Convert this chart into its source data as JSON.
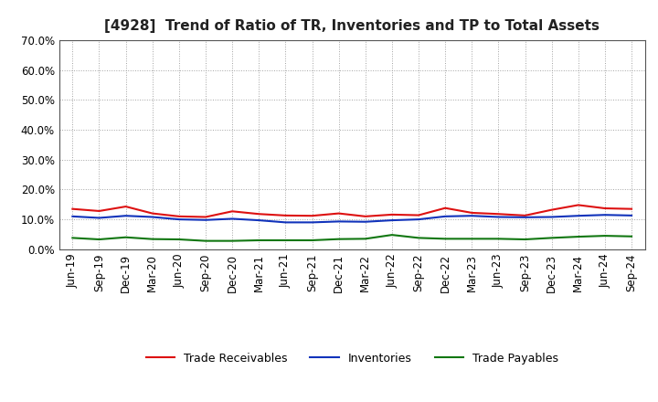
{
  "title": "[4928]  Trend of Ratio of TR, Inventories and TP to Total Assets",
  "x_labels": [
    "Jun-19",
    "Sep-19",
    "Dec-19",
    "Mar-20",
    "Jun-20",
    "Sep-20",
    "Dec-20",
    "Mar-21",
    "Jun-21",
    "Sep-21",
    "Dec-21",
    "Mar-22",
    "Jun-22",
    "Sep-22",
    "Dec-22",
    "Mar-23",
    "Jun-23",
    "Sep-23",
    "Dec-23",
    "Mar-24",
    "Jun-24",
    "Sep-24"
  ],
  "trade_receivables": [
    0.135,
    0.128,
    0.143,
    0.12,
    0.11,
    0.108,
    0.127,
    0.118,
    0.113,
    0.112,
    0.12,
    0.11,
    0.116,
    0.114,
    0.138,
    0.122,
    0.118,
    0.113,
    0.132,
    0.148,
    0.137,
    0.135
  ],
  "inventories": [
    0.11,
    0.105,
    0.112,
    0.108,
    0.1,
    0.098,
    0.102,
    0.097,
    0.09,
    0.09,
    0.093,
    0.092,
    0.097,
    0.1,
    0.11,
    0.112,
    0.108,
    0.107,
    0.108,
    0.112,
    0.115,
    0.113
  ],
  "trade_payables": [
    0.038,
    0.033,
    0.04,
    0.034,
    0.033,
    0.028,
    0.028,
    0.03,
    0.03,
    0.03,
    0.034,
    0.035,
    0.048,
    0.038,
    0.035,
    0.035,
    0.035,
    0.033,
    0.038,
    0.042,
    0.045,
    0.043
  ],
  "ylim": [
    0.0,
    0.7
  ],
  "yticks": [
    0.0,
    0.1,
    0.2,
    0.3,
    0.4,
    0.5,
    0.6,
    0.7
  ],
  "tr_color": "#dd1111",
  "inv_color": "#1133bb",
  "tp_color": "#117711",
  "bg_color": "#ffffff",
  "plot_bg_color": "#ffffff",
  "grid_color": "#999999",
  "legend_labels": [
    "Trade Receivables",
    "Inventories",
    "Trade Payables"
  ],
  "title_fontsize": 11,
  "tick_fontsize": 8.5,
  "ytick_fontsize": 8.5
}
